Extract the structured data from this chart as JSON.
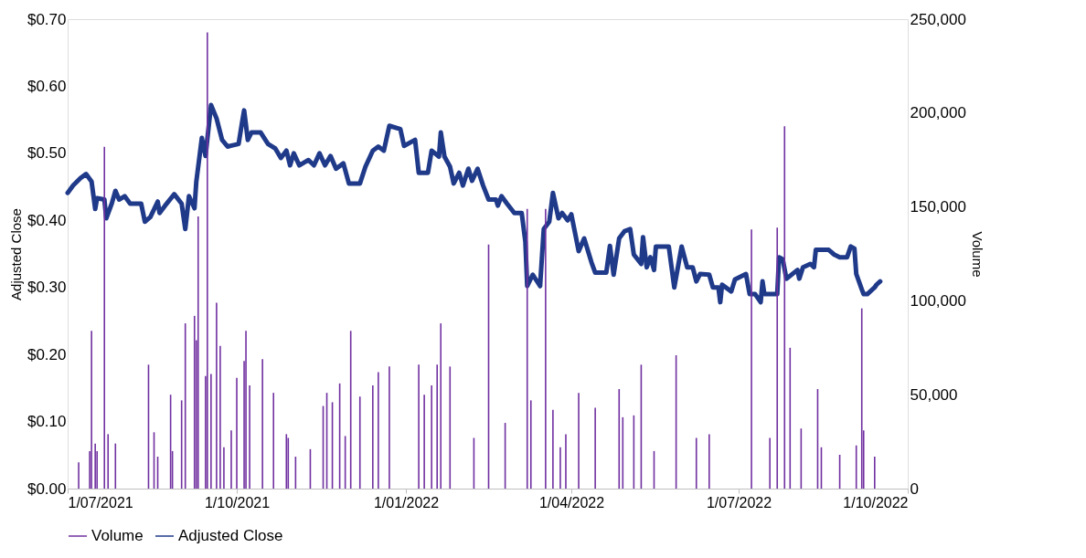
{
  "chart_data": {
    "type": "line",
    "ylabel": "Adjusted Close",
    "y2label": "Volume",
    "xlim": [
      "2021-07-01",
      "2022-10-01"
    ],
    "xticks": [
      {
        "value": "2021-07-01",
        "label": "1/07/2021"
      },
      {
        "value": "2021-10-01",
        "label": "1/10/2021"
      },
      {
        "value": "2022-01-01",
        "label": "1/01/2022"
      },
      {
        "value": "2022-04-01",
        "label": "1/04/2022"
      },
      {
        "value": "2022-07-01",
        "label": "1/07/2022"
      },
      {
        "value": "2022-10-01",
        "label": "1/10/2022"
      }
    ],
    "ylim": [
      0,
      0.7
    ],
    "yticks": [
      {
        "value": 0,
        "label": "$0.00"
      },
      {
        "value": 0.1,
        "label": "$0.10"
      },
      {
        "value": 0.2,
        "label": "$0.20"
      },
      {
        "value": 0.3,
        "label": "$0.30"
      },
      {
        "value": 0.4,
        "label": "$0.40"
      },
      {
        "value": 0.5,
        "label": "$0.50"
      },
      {
        "value": 0.6,
        "label": "$0.60"
      },
      {
        "value": 0.7,
        "label": "$0.70"
      }
    ],
    "y2lim": [
      0,
      250000
    ],
    "y2ticks": [
      0,
      {
        "value": 50000,
        "label": "50,000"
      },
      {
        "value": 100000,
        "label": "100,000"
      },
      {
        "value": 150000,
        "label": "150,000"
      },
      {
        "value": 200000,
        "label": "200,000"
      },
      {
        "value": 250000,
        "label": "250,000"
      }
    ],
    "grid": false,
    "legend": "bottom",
    "series": [
      {
        "name": "Volume",
        "type": "bar",
        "axis": "y2",
        "color": "#7030a0",
        "x": [
          "2021-07-07",
          "2021-07-13",
          "2021-07-14",
          "2021-07-16",
          "2021-07-17",
          "2021-07-21",
          "2021-07-23",
          "2021-07-27",
          "2021-08-14",
          "2021-08-17",
          "2021-08-19",
          "2021-08-26",
          "2021-08-27",
          "2021-09-01",
          "2021-09-03",
          "2021-09-08",
          "2021-09-09",
          "2021-09-10",
          "2021-09-14",
          "2021-09-15",
          "2021-09-17",
          "2021-09-20",
          "2021-09-22",
          "2021-09-24",
          "2021-09-28",
          "2021-10-01",
          "2021-10-05",
          "2021-10-06",
          "2021-10-08",
          "2021-10-15",
          "2021-10-21",
          "2021-10-28",
          "2021-10-29",
          "2021-11-02",
          "2021-11-10",
          "2021-11-17",
          "2021-11-19",
          "2021-11-22",
          "2021-11-26",
          "2021-11-29",
          "2021-12-02",
          "2021-12-07",
          "2021-12-14",
          "2021-12-17",
          "2021-12-23",
          "2022-01-08",
          "2022-01-11",
          "2022-01-15",
          "2022-01-18",
          "2022-01-20",
          "2022-01-25",
          "2022-02-07",
          "2022-02-15",
          "2022-02-24",
          "2022-03-08",
          "2022-03-10",
          "2022-03-18",
          "2022-03-22",
          "2022-03-26",
          "2022-03-29",
          "2022-04-05",
          "2022-04-14",
          "2022-04-27",
          "2022-04-29",
          "2022-05-05",
          "2022-05-09",
          "2022-05-16",
          "2022-05-28",
          "2022-06-08",
          "2022-06-15",
          "2022-07-08",
          "2022-07-18",
          "2022-07-22",
          "2022-07-26",
          "2022-07-29",
          "2022-08-04",
          "2022-08-13",
          "2022-08-15",
          "2022-08-25",
          "2022-09-03",
          "2022-09-06",
          "2022-09-07",
          "2022-09-13"
        ],
        "values": [
          14000,
          20000,
          84000,
          24000,
          20000,
          182000,
          29000,
          24000,
          66000,
          30000,
          17000,
          50000,
          20000,
          47000,
          88000,
          92000,
          79000,
          145000,
          60000,
          243000,
          61000,
          99000,
          76000,
          22000,
          31000,
          59000,
          68000,
          84000,
          55000,
          69000,
          51000,
          29000,
          27000,
          17000,
          21000,
          44000,
          51000,
          46000,
          56000,
          28000,
          84000,
          49000,
          55000,
          62000,
          65000,
          66000,
          50000,
          55000,
          66000,
          88000,
          65000,
          27000,
          130000,
          35000,
          149000,
          47000,
          149000,
          42000,
          22000,
          29000,
          51000,
          43000,
          53000,
          38000,
          39000,
          66000,
          20000,
          71000,
          27000,
          29000,
          138000,
          27000,
          139000,
          193000,
          75000,
          32000,
          53000,
          22000,
          18000,
          23000,
          96000,
          31000,
          17000
        ]
      },
      {
        "name": "Adjusted Close",
        "axis": "y",
        "color": "#203a8a",
        "x": [
          "2021-07-01",
          "2021-07-04",
          "2021-07-08",
          "2021-07-11",
          "2021-07-14",
          "2021-07-16",
          "2021-07-17",
          "2021-07-21",
          "2021-07-22",
          "2021-07-25",
          "2021-07-27",
          "2021-07-29",
          "2021-08-01",
          "2021-08-04",
          "2021-08-10",
          "2021-08-12",
          "2021-08-15",
          "2021-08-19",
          "2021-08-20",
          "2021-08-23",
          "2021-08-28",
          "2021-09-01",
          "2021-09-03",
          "2021-09-05",
          "2021-09-08",
          "2021-09-09",
          "2021-09-12",
          "2021-09-14",
          "2021-09-17",
          "2021-09-20",
          "2021-09-23",
          "2021-09-26",
          "2021-10-02",
          "2021-10-04",
          "2021-10-05",
          "2021-10-07",
          "2021-10-09",
          "2021-10-14",
          "2021-10-18",
          "2021-10-22",
          "2021-10-25",
          "2021-10-28",
          "2021-10-30",
          "2021-11-01",
          "2021-11-04",
          "2021-11-09",
          "2021-11-12",
          "2021-11-15",
          "2021-11-18",
          "2021-11-21",
          "2021-11-24",
          "2021-11-28",
          "2021-12-01",
          "2021-12-07",
          "2021-12-10",
          "2021-12-14",
          "2021-12-17",
          "2021-12-20",
          "2021-12-23",
          "2021-12-29",
          "2021-12-31",
          "2022-01-06",
          "2022-01-08",
          "2022-01-13",
          "2022-01-15",
          "2022-01-19",
          "2022-01-20",
          "2022-01-22",
          "2022-01-25",
          "2022-01-27",
          "2022-01-30",
          "2022-02-01",
          "2022-02-04",
          "2022-02-06",
          "2022-02-09",
          "2022-02-12",
          "2022-02-15",
          "2022-02-19",
          "2022-02-20",
          "2022-02-22",
          "2022-02-25",
          "2022-03-01",
          "2022-03-05",
          "2022-03-07",
          "2022-03-08",
          "2022-03-11",
          "2022-03-15",
          "2022-03-17",
          "2022-03-20",
          "2022-03-22",
          "2022-03-25",
          "2022-03-27",
          "2022-03-30",
          "2022-04-01",
          "2022-04-05",
          "2022-04-08",
          "2022-04-12",
          "2022-04-14",
          "2022-04-20",
          "2022-04-22",
          "2022-04-24",
          "2022-04-27",
          "2022-04-30",
          "2022-05-03",
          "2022-05-05",
          "2022-05-09",
          "2022-05-10",
          "2022-05-12",
          "2022-05-14",
          "2022-05-16",
          "2022-05-17",
          "2022-05-21",
          "2022-05-24",
          "2022-05-27",
          "2022-05-31",
          "2022-06-03",
          "2022-06-06",
          "2022-06-08",
          "2022-06-10",
          "2022-06-15",
          "2022-06-17",
          "2022-06-20",
          "2022-06-21",
          "2022-06-22",
          "2022-06-27",
          "2022-06-29",
          "2022-07-05",
          "2022-07-07",
          "2022-07-10",
          "2022-07-13",
          "2022-07-14",
          "2022-07-15",
          "2022-07-22",
          "2022-07-23",
          "2022-07-25",
          "2022-07-27",
          "2022-08-02",
          "2022-08-03",
          "2022-08-05",
          "2022-08-09",
          "2022-08-11",
          "2022-08-12",
          "2022-08-19",
          "2022-08-22",
          "2022-08-25",
          "2022-08-29",
          "2022-08-31",
          "2022-09-02",
          "2022-09-03",
          "2022-09-06",
          "2022-09-07",
          "2022-09-09",
          "2022-09-13",
          "2022-09-14",
          "2022-09-16"
        ],
        "values": [
          0.441,
          0.452,
          0.463,
          0.469,
          0.458,
          0.417,
          0.433,
          0.431,
          0.403,
          0.425,
          0.444,
          0.431,
          0.436,
          0.425,
          0.425,
          0.398,
          0.405,
          0.428,
          0.411,
          0.422,
          0.439,
          0.425,
          0.387,
          0.436,
          0.418,
          0.458,
          0.523,
          0.496,
          0.572,
          0.552,
          0.52,
          0.51,
          0.514,
          0.548,
          0.564,
          0.52,
          0.531,
          0.531,
          0.514,
          0.507,
          0.493,
          0.504,
          0.482,
          0.5,
          0.482,
          0.49,
          0.482,
          0.5,
          0.482,
          0.496,
          0.477,
          0.485,
          0.455,
          0.455,
          0.48,
          0.504,
          0.51,
          0.504,
          0.541,
          0.536,
          0.511,
          0.52,
          0.471,
          0.471,
          0.504,
          0.495,
          0.531,
          0.495,
          0.48,
          0.455,
          0.471,
          0.452,
          0.477,
          0.459,
          0.477,
          0.452,
          0.431,
          0.431,
          0.422,
          0.436,
          0.425,
          0.411,
          0.411,
          0.368,
          0.302,
          0.319,
          0.302,
          0.387,
          0.398,
          0.441,
          0.403,
          0.411,
          0.4,
          0.409,
          0.354,
          0.373,
          0.337,
          0.322,
          0.322,
          0.362,
          0.319,
          0.373,
          0.384,
          0.387,
          0.349,
          0.335,
          0.375,
          0.33,
          0.345,
          0.326,
          0.361,
          0.361,
          0.361,
          0.3,
          0.361,
          0.33,
          0.33,
          0.309,
          0.32,
          0.319,
          0.3,
          0.3,
          0.278,
          0.304,
          0.294,
          0.312,
          0.32,
          0.29,
          0.29,
          0.278,
          0.309,
          0.29,
          0.29,
          0.345,
          0.342,
          0.313,
          0.326,
          0.313,
          0.33,
          0.335,
          0.33,
          0.356,
          0.356,
          0.349,
          0.345,
          0.345,
          0.361,
          0.358,
          0.32,
          0.297,
          0.29,
          0.29,
          0.3,
          0.304,
          0.309
        ]
      }
    ]
  }
}
